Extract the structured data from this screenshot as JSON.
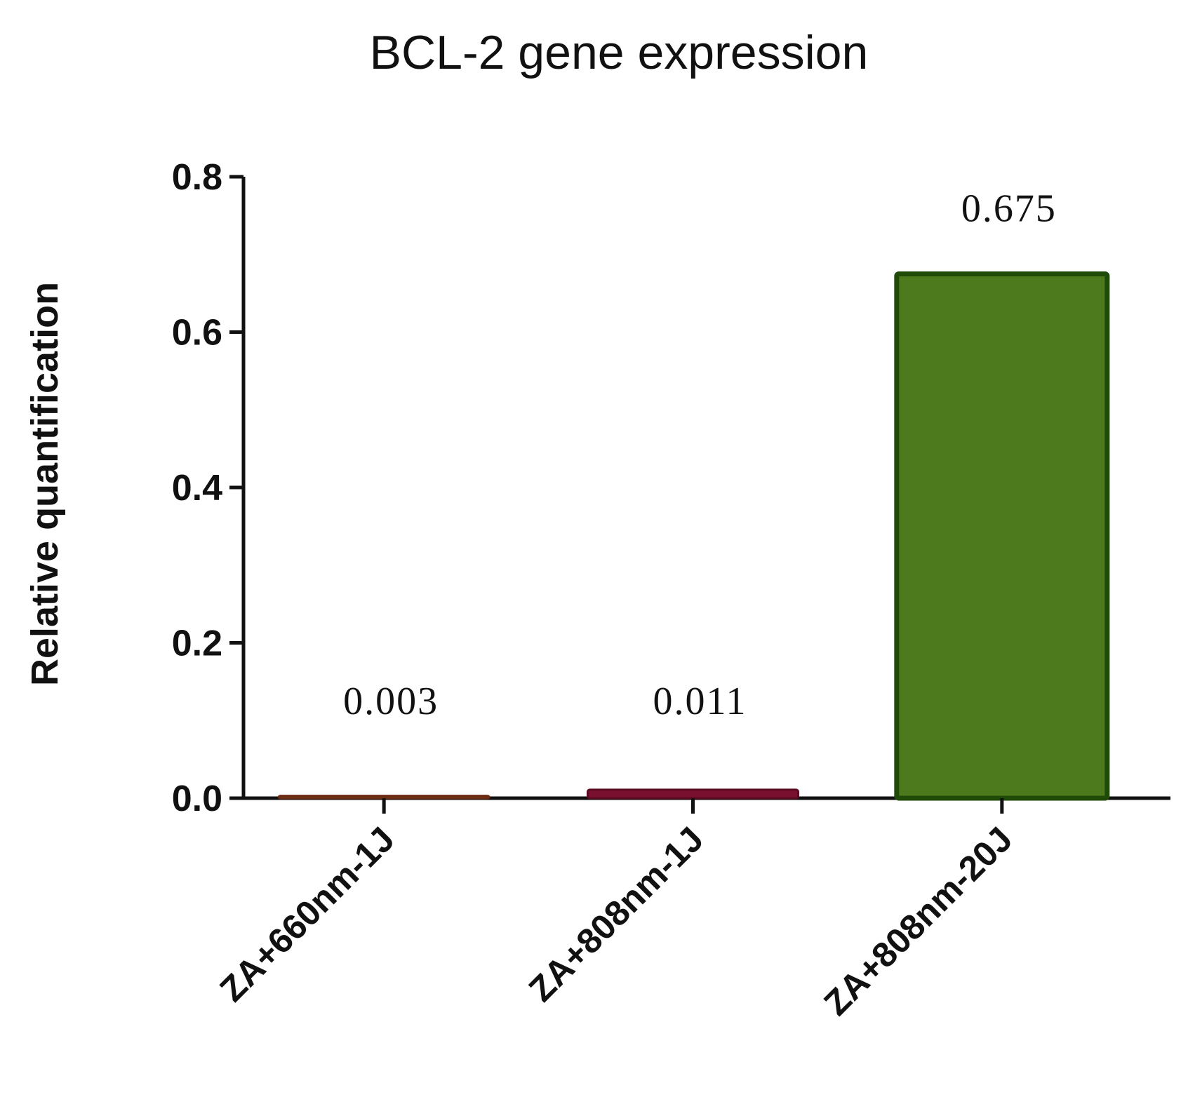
{
  "chart_data": {
    "type": "bar",
    "title": "BCL-2 gene expression",
    "xlabel": "",
    "ylabel": "Relative quantification",
    "ylim": [
      0,
      0.8
    ],
    "yticks": [
      "0.0",
      "0.2",
      "0.4",
      "0.6",
      "0.8"
    ],
    "categories": [
      "ZA+660nm-1J",
      "ZA+808nm-1J",
      "ZA+808nm-20J"
    ],
    "values": [
      0.003,
      0.011,
      0.675
    ],
    "data_labels": [
      "0.003",
      "0.011",
      "0.675"
    ],
    "colors": [
      {
        "fill": "#8a3a1e",
        "stroke": "#6b2a12"
      },
      {
        "fill": "#7a1030",
        "stroke": "#5c0a22"
      },
      {
        "fill": "#4e7a1e",
        "stroke": "#1f4a08"
      }
    ],
    "grid": false,
    "legend": "none"
  }
}
